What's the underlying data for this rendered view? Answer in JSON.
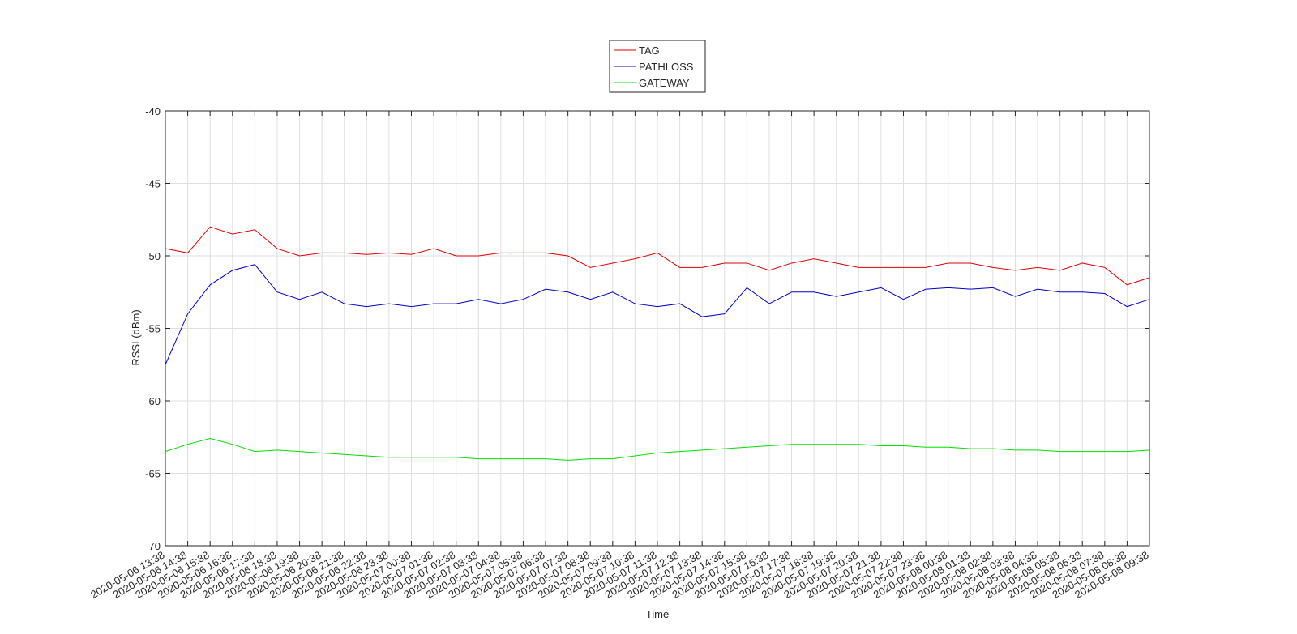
{
  "chart_data": {
    "type": "line",
    "x_label": "Time",
    "y_label": "RSSI (dBm)",
    "x": [
      "2020-05-06 13:38",
      "2020-05-06 14:38",
      "2020-05-06 15:38",
      "2020-05-06 16:38",
      "2020-05-06 17:38",
      "2020-05-06 18:38",
      "2020-05-06 19:38",
      "2020-05-06 20:38",
      "2020-05-06 21:38",
      "2020-05-06 22:38",
      "2020-05-06 23:38",
      "2020-05-07 00:38",
      "2020-05-07 01:38",
      "2020-05-07 02:38",
      "2020-05-07 03:38",
      "2020-05-07 04:38",
      "2020-05-07 05:38",
      "2020-05-07 06:38",
      "2020-05-07 07:38",
      "2020-05-07 08:38",
      "2020-05-07 09:38",
      "2020-05-07 10:38",
      "2020-05-07 11:38",
      "2020-05-07 12:38",
      "2020-05-07 13:38",
      "2020-05-07 14:38",
      "2020-05-07 15:38",
      "2020-05-07 16:38",
      "2020-05-07 17:38",
      "2020-05-07 18:38",
      "2020-05-07 19:38",
      "2020-05-07 20:38",
      "2020-05-07 21:38",
      "2020-05-07 22:38",
      "2020-05-07 23:38",
      "2020-05-08 00:38",
      "2020-05-08 01:38",
      "2020-05-08 02:38",
      "2020-05-08 03:38",
      "2020-05-08 04:38",
      "2020-05-08 05:38",
      "2020-05-08 06:38",
      "2020-05-08 07:38",
      "2020-05-08 08:38",
      "2020-05-08 09:38"
    ],
    "series": [
      {
        "name": "TAG",
        "color": "#e00000",
        "values": [
          -49.5,
          -49.8,
          -48,
          -48.5,
          -48.2,
          -49.5,
          -50,
          -49.8,
          -49.8,
          -49.9,
          -49.8,
          -49.9,
          -49.5,
          -50,
          -50,
          -49.8,
          -49.8,
          -49.8,
          -50,
          -50.8,
          -50.5,
          -50.2,
          -49.8,
          -50.8,
          -50.8,
          -50.5,
          -50.5,
          -51,
          -50.5,
          -50.2,
          -50.5,
          -50.8,
          -50.8,
          -50.8,
          -50.8,
          -50.5,
          -50.5,
          -50.8,
          -51,
          -50.8,
          -51,
          -50.5,
          -50.8,
          -52,
          -51.5
        ]
      },
      {
        "name": "PATHLOSS",
        "color": "#0000c8",
        "values": [
          -57.5,
          -54,
          -52,
          -51,
          -50.6,
          -52.5,
          -53,
          -52.5,
          -53.3,
          -53.5,
          -53.3,
          -53.5,
          -53.3,
          -53.3,
          -53,
          -53.3,
          -53,
          -52.3,
          -52.5,
          -53,
          -52.5,
          -53.3,
          -53.5,
          -53.3,
          -54.2,
          -54,
          -52.2,
          -53.3,
          -52.5,
          -52.5,
          -52.8,
          -52.5,
          -52.2,
          -53,
          -52.3,
          -52.2,
          -52.3,
          -52.2,
          -52.8,
          -52.3,
          -52.5,
          -52.5,
          -52.6,
          -53.5,
          -53
        ]
      },
      {
        "name": "GATEWAY",
        "color": "#00e000",
        "values": [
          -63.5,
          -63,
          -62.6,
          -63,
          -63.5,
          -63.4,
          -63.5,
          -63.6,
          -63.7,
          -63.8,
          -63.9,
          -63.9,
          -63.9,
          -63.9,
          -64,
          -64,
          -64,
          -64,
          -64.1,
          -64,
          -64,
          -63.8,
          -63.6,
          -63.5,
          -63.4,
          -63.3,
          -63.2,
          -63.1,
          -63,
          -63,
          -63,
          -63,
          -63.1,
          -63.1,
          -63.2,
          -63.2,
          -63.3,
          -63.3,
          -63.4,
          -63.4,
          -63.5,
          -63.5,
          -63.5,
          -63.5,
          -63.4
        ]
      }
    ],
    "xlim": [
      "2020-05-06 13:38",
      "2020-05-08 09:38"
    ],
    "xticks": [
      "2020-05-06 13:38",
      "2020-05-06 14:38",
      "2020-05-06 15:38",
      "2020-05-06 16:38",
      "2020-05-06 17:38",
      "2020-05-06 18:38",
      "2020-05-06 19:38",
      "2020-05-06 20:38",
      "2020-05-06 21:38",
      "2020-05-06 22:38",
      "2020-05-06 23:38",
      "2020-05-07 00:38",
      "2020-05-07 01:38",
      "2020-05-07 02:38",
      "2020-05-07 03:38",
      "2020-05-07 04:38",
      "2020-05-07 05:38",
      "2020-05-07 06:38",
      "2020-05-07 07:38",
      "2020-05-07 08:38",
      "2020-05-07 09:38",
      "2020-05-07 10:38",
      "2020-05-07 11:38",
      "2020-05-07 12:38",
      "2020-05-07 13:38",
      "2020-05-07 14:38",
      "2020-05-07 15:38",
      "2020-05-07 16:38",
      "2020-05-07 17:38",
      "2020-05-07 18:38",
      "2020-05-07 19:38",
      "2020-05-07 20:38",
      "2020-05-07 21:38",
      "2020-05-07 22:38",
      "2020-05-07 23:38",
      "2020-05-08 00:38",
      "2020-05-08 01:38",
      "2020-05-08 02:38",
      "2020-05-08 03:38",
      "2020-05-08 04:38",
      "2020-05-08 05:38",
      "2020-05-08 06:38",
      "2020-05-08 07:38",
      "2020-05-08 08:38",
      "2020-05-08 09:38"
    ],
    "ylim": [
      -70,
      -40
    ],
    "yticks": [
      -70,
      -65,
      -60,
      -55,
      -50,
      -45,
      -40
    ],
    "grid": true,
    "legend": "top"
  }
}
